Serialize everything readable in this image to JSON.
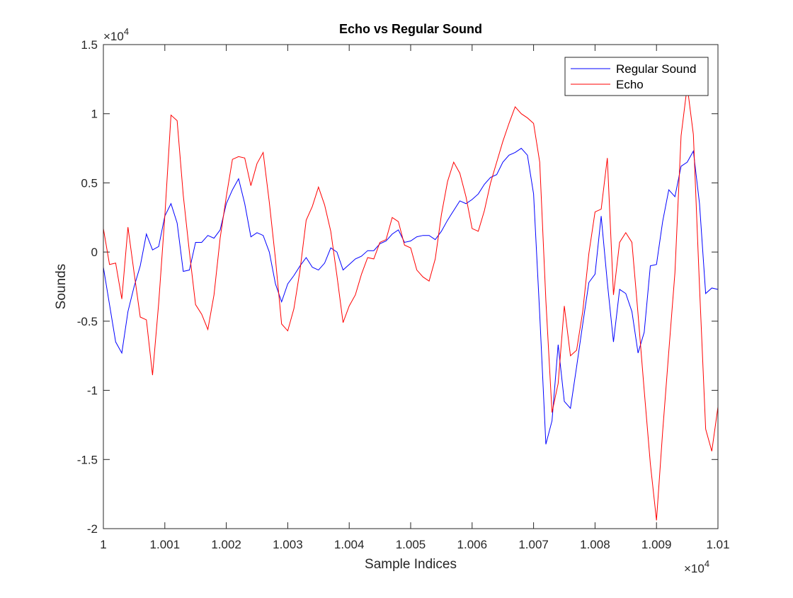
{
  "chart_data": {
    "type": "line",
    "title": "Echo vs Regular Sound",
    "xlabel": "Sample Indices",
    "ylabel": "Sounds",
    "x_multiplier": {
      "base": "×10",
      "exponent": "4"
    },
    "y_multiplier": {
      "base": "×10",
      "exponent": "4"
    },
    "x": [
      10000,
      10001,
      10002,
      10003,
      10004,
      10005,
      10006,
      10007,
      10008,
      10009,
      10010,
      10011,
      10012,
      10013,
      10014,
      10015,
      10016,
      10017,
      10018,
      10019,
      10020,
      10021,
      10022,
      10023,
      10024,
      10025,
      10026,
      10027,
      10028,
      10029,
      10030,
      10031,
      10032,
      10033,
      10034,
      10035,
      10036,
      10037,
      10038,
      10039,
      10040,
      10041,
      10042,
      10043,
      10044,
      10045,
      10046,
      10047,
      10048,
      10049,
      10050,
      10051,
      10052,
      10053,
      10054,
      10055,
      10056,
      10057,
      10058,
      10059,
      10060,
      10061,
      10062,
      10063,
      10064,
      10065,
      10066,
      10067,
      10068,
      10069,
      10070,
      10071,
      10072,
      10073,
      10074,
      10075,
      10076,
      10077,
      10078,
      10079,
      10080,
      10081,
      10082,
      10083,
      10084,
      10085,
      10086,
      10087,
      10088,
      10089,
      10090,
      10091,
      10092,
      10093,
      10094,
      10095,
      10096,
      10097,
      10098,
      10099,
      10100
    ],
    "series": [
      {
        "name": "Regular Sound",
        "color": "#0000ff",
        "values": [
          -1100,
          -3800,
          -6500,
          -7300,
          -4300,
          -2500,
          -1000,
          1300,
          150,
          400,
          2600,
          3500,
          2100,
          -1400,
          -1300,
          700,
          700,
          1200,
          1000,
          1600,
          3500,
          4500,
          5300,
          3500,
          1100,
          1400,
          1200,
          0,
          -2300,
          -3600,
          -2300,
          -1700,
          -1000,
          -400,
          -1100,
          -1300,
          -800,
          300,
          0,
          -1300,
          -900,
          -500,
          -300,
          100,
          100,
          600,
          800,
          1300,
          1600,
          700,
          800,
          1100,
          1200,
          1200,
          900,
          1500,
          2300,
          3000,
          3700,
          3500,
          3800,
          4200,
          4900,
          5400,
          5600,
          6500,
          7000,
          7200,
          7500,
          7000,
          4200,
          -4500,
          -13900,
          -12200,
          -6700,
          -10800,
          -11300,
          -8300,
          -5200,
          -2200,
          -1600,
          2600,
          -2200,
          -6500,
          -2700,
          -3000,
          -4300,
          -7300,
          -5800,
          -1000,
          -900,
          2200,
          4500,
          4000,
          6200,
          6500,
          7300,
          3500,
          -3000,
          -2600,
          -2700
        ]
      },
      {
        "name": "Echo",
        "color": "#ff0000",
        "values": [
          1700,
          -900,
          -800,
          -3400,
          1800,
          -1500,
          -4700,
          -4900,
          -8900,
          -3700,
          2600,
          9900,
          9500,
          4100,
          0,
          -3800,
          -4500,
          -5600,
          -3100,
          1000,
          4000,
          6700,
          6900,
          6800,
          4800,
          6400,
          7200,
          3600,
          -500,
          -5200,
          -5700,
          -4100,
          -1300,
          2300,
          3300,
          4700,
          3400,
          1500,
          -1700,
          -5100,
          -3900,
          -3100,
          -1600,
          -400,
          -500,
          700,
          900,
          2500,
          2200,
          500,
          300,
          -1300,
          -1800,
          -2100,
          -500,
          2700,
          5100,
          6500,
          5700,
          4000,
          1700,
          1500,
          3000,
          5000,
          6500,
          8000,
          9300,
          10500,
          10000,
          9700,
          9300,
          6500,
          -3500,
          -11600,
          -9500,
          -3900,
          -7500,
          -7100,
          -4300,
          -100,
          2900,
          3100,
          6800,
          -3100,
          700,
          1400,
          700,
          -4500,
          -10000,
          -15300,
          -19400,
          -13000,
          -7200,
          -1500,
          8400,
          12000,
          8500,
          -2500,
          -12800,
          -14400,
          -11200
        ]
      }
    ],
    "xlim": [
      10000,
      10100
    ],
    "xticks": [
      {
        "value": 10000,
        "label": "1"
      },
      {
        "value": 10010,
        "label": "1.001"
      },
      {
        "value": 10020,
        "label": "1.002"
      },
      {
        "value": 10030,
        "label": "1.003"
      },
      {
        "value": 10040,
        "label": "1.004"
      },
      {
        "value": 10050,
        "label": "1.005"
      },
      {
        "value": 10060,
        "label": "1.006"
      },
      {
        "value": 10070,
        "label": "1.007"
      },
      {
        "value": 10080,
        "label": "1.008"
      },
      {
        "value": 10090,
        "label": "1.009"
      },
      {
        "value": 10100,
        "label": "1.01"
      }
    ],
    "ylim": [
      -20000,
      15000
    ],
    "yticks": [
      {
        "value": -20000,
        "label": "-2"
      },
      {
        "value": -15000,
        "label": "-1.5"
      },
      {
        "value": -10000,
        "label": "-1"
      },
      {
        "value": -5000,
        "label": "-0.5"
      },
      0,
      {
        "value": 5000,
        "label": "0.5"
      },
      {
        "value": 10000,
        "label": "1"
      },
      {
        "value": 15000,
        "label": "1.5"
      }
    ],
    "grid": false,
    "legend_position": "upper-right"
  }
}
